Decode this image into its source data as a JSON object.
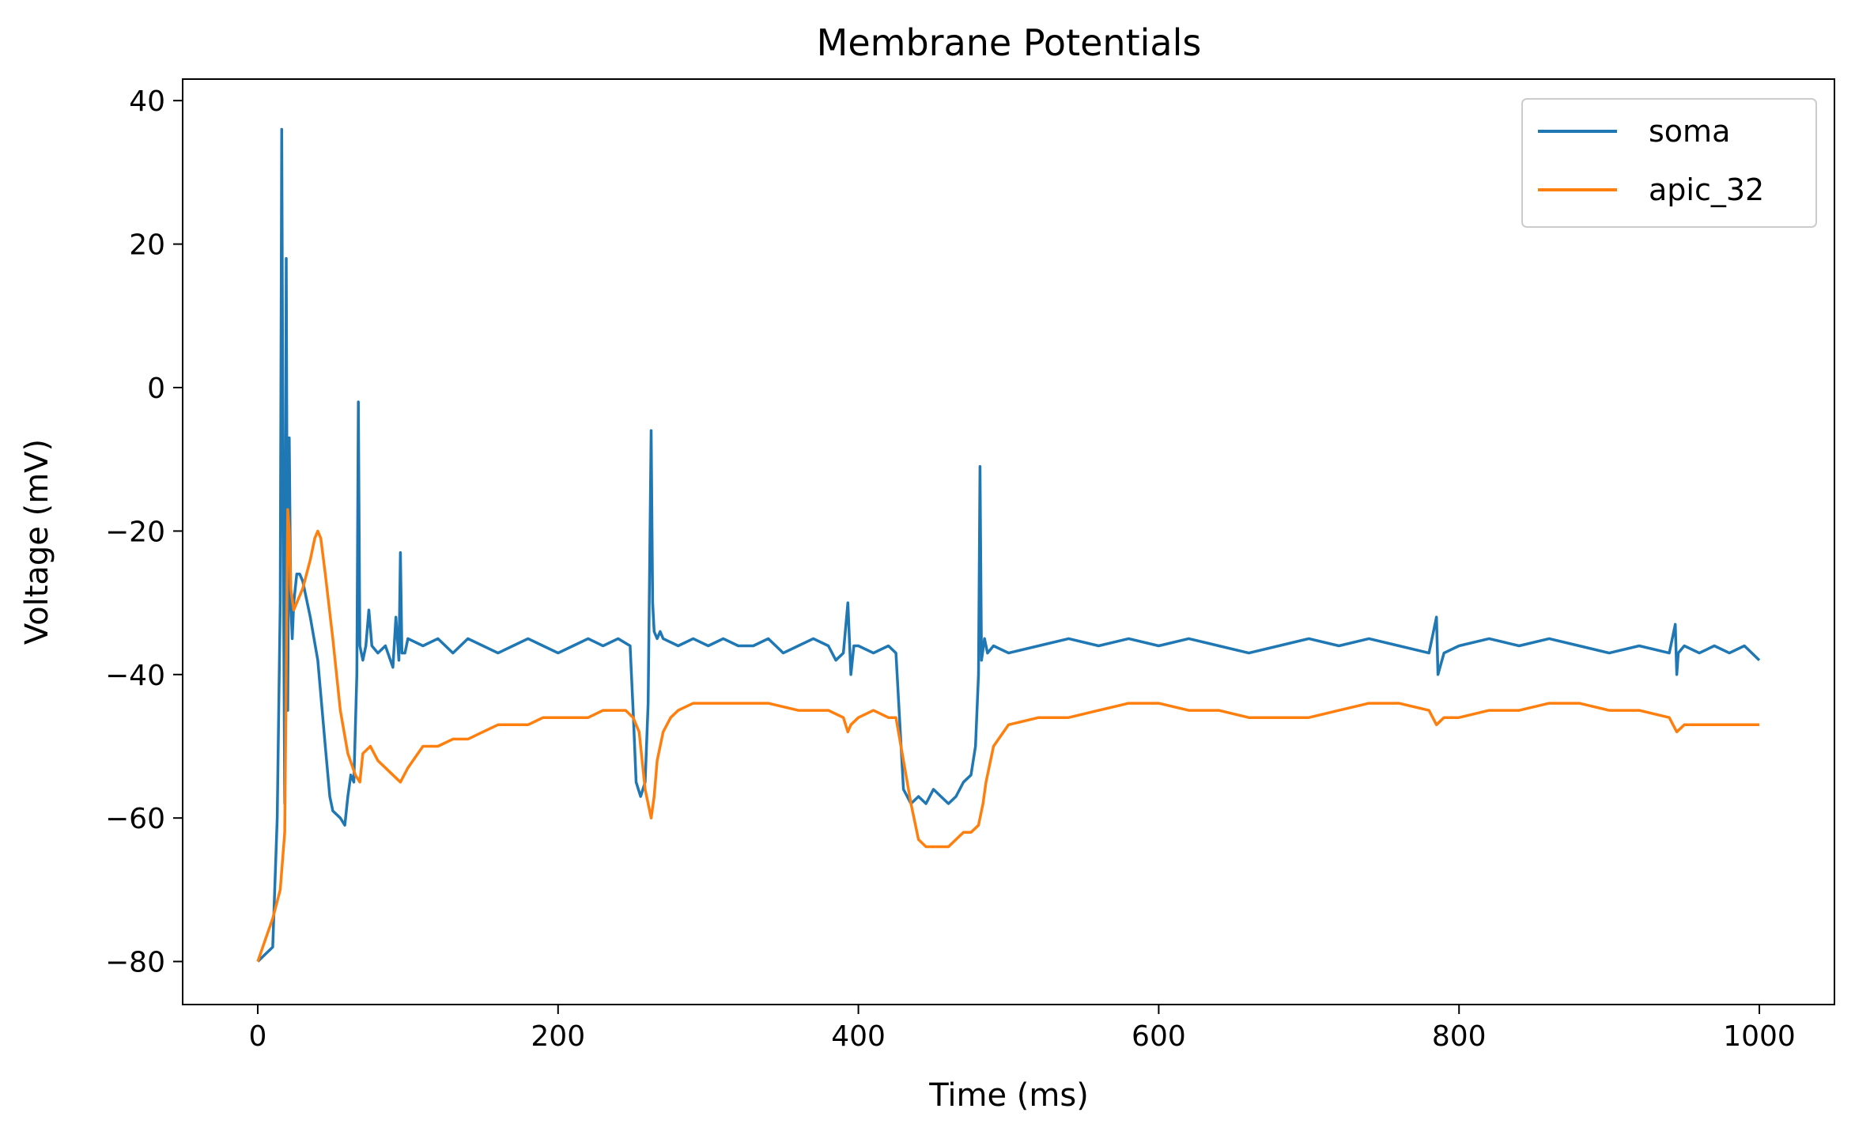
{
  "chart_data": {
    "type": "line",
    "title": "Membrane Potentials",
    "xlabel": "Time (ms)",
    "ylabel": "Voltage (mV)",
    "xlim": [
      -50,
      1050
    ],
    "ylim": [
      -86,
      43
    ],
    "xticks": [
      0,
      200,
      400,
      600,
      800,
      1000
    ],
    "yticks": [
      -80,
      -60,
      -40,
      -20,
      0,
      20,
      40
    ],
    "xtick_labels": [
      "0",
      "200",
      "400",
      "600",
      "800",
      "1000"
    ],
    "ytick_labels": [
      "−80",
      "−60",
      "−40",
      "−20",
      "0",
      "20",
      "40"
    ],
    "grid": false,
    "legend_position": "top-right",
    "series": [
      {
        "name": "soma",
        "color": "#1f77b4",
        "x": [
          0,
          5,
          10,
          13,
          15,
          16,
          17,
          18,
          19,
          20,
          21,
          22,
          23,
          24,
          25,
          26,
          28,
          30,
          35,
          40,
          45,
          48,
          50,
          55,
          58,
          60,
          62,
          64,
          66,
          67,
          68,
          70,
          72,
          74,
          76,
          80,
          85,
          90,
          92,
          94,
          95,
          96,
          98,
          100,
          110,
          120,
          130,
          140,
          150,
          160,
          170,
          180,
          190,
          200,
          210,
          220,
          230,
          240,
          248,
          250,
          252,
          255,
          258,
          260,
          262,
          263,
          264,
          266,
          268,
          270,
          280,
          290,
          300,
          310,
          320,
          330,
          340,
          350,
          360,
          370,
          380,
          385,
          390,
          393,
          395,
          397,
          400,
          410,
          420,
          425,
          430,
          435,
          440,
          445,
          450,
          455,
          460,
          465,
          470,
          475,
          478,
          480,
          481,
          482,
          484,
          486,
          490,
          500,
          520,
          540,
          560,
          580,
          600,
          620,
          640,
          660,
          680,
          700,
          720,
          740,
          760,
          780,
          785,
          786,
          790,
          800,
          820,
          840,
          860,
          880,
          900,
          920,
          940,
          944,
          945,
          946,
          950,
          960,
          970,
          980,
          990,
          995,
          1000
        ],
        "y": [
          -80,
          -79,
          -78,
          -60,
          -30,
          36,
          -20,
          -58,
          18,
          -45,
          -7,
          -30,
          -35,
          -30,
          -28,
          -26,
          -26,
          -27,
          -32,
          -38,
          -50,
          -57,
          -59,
          -60,
          -61,
          -57,
          -54,
          -55,
          -40,
          -2,
          -36,
          -38,
          -36,
          -31,
          -36,
          -37,
          -36,
          -39,
          -32,
          -38,
          -23,
          -37,
          -37,
          -35,
          -36,
          -35,
          -37,
          -35,
          -36,
          -37,
          -36,
          -35,
          -36,
          -37,
          -36,
          -35,
          -36,
          -35,
          -36,
          -45,
          -55,
          -57,
          -55,
          -44,
          -6,
          -30,
          -34,
          -35,
          -34,
          -35,
          -36,
          -35,
          -36,
          -35,
          -36,
          -36,
          -35,
          -37,
          -36,
          -35,
          -36,
          -38,
          -37,
          -30,
          -40,
          -36,
          -36,
          -37,
          -36,
          -37,
          -56,
          -58,
          -57,
          -58,
          -56,
          -57,
          -58,
          -57,
          -55,
          -54,
          -50,
          -40,
          -11,
          -38,
          -35,
          -37,
          -36,
          -37,
          -36,
          -35,
          -36,
          -35,
          -36,
          -35,
          -36,
          -37,
          -36,
          -35,
          -36,
          -35,
          -36,
          -37,
          -32,
          -40,
          -37,
          -36,
          -35,
          -36,
          -35,
          -36,
          -37,
          -36,
          -37,
          -33,
          -40,
          -37,
          -36,
          -37,
          -36,
          -37,
          -36,
          -37,
          -38
        ]
      },
      {
        "name": "apic_32",
        "color": "#ff7f0e",
        "x": [
          0,
          5,
          10,
          15,
          18,
          20,
          21,
          22,
          24,
          26,
          30,
          35,
          38,
          40,
          42,
          45,
          50,
          55,
          60,
          65,
          68,
          70,
          75,
          80,
          85,
          90,
          95,
          100,
          110,
          120,
          130,
          140,
          150,
          160,
          170,
          180,
          190,
          200,
          210,
          220,
          230,
          240,
          245,
          250,
          254,
          256,
          258,
          260,
          262,
          264,
          266,
          270,
          275,
          280,
          290,
          300,
          320,
          340,
          360,
          380,
          390,
          393,
          395,
          400,
          410,
          420,
          425,
          430,
          435,
          440,
          445,
          450,
          455,
          460,
          465,
          470,
          475,
          480,
          483,
          485,
          490,
          500,
          520,
          540,
          560,
          580,
          600,
          620,
          640,
          660,
          680,
          700,
          720,
          740,
          760,
          780,
          785,
          790,
          800,
          820,
          840,
          860,
          880,
          900,
          920,
          940,
          945,
          950,
          960,
          980,
          1000
        ],
        "y": [
          -80,
          -77,
          -74,
          -70,
          -62,
          -17,
          -20,
          -28,
          -31,
          -30,
          -28,
          -24,
          -21,
          -20,
          -21,
          -26,
          -35,
          -45,
          -51,
          -54,
          -55,
          -51,
          -50,
          -52,
          -53,
          -54,
          -55,
          -53,
          -50,
          -50,
          -49,
          -49,
          -48,
          -47,
          -47,
          -47,
          -46,
          -46,
          -46,
          -46,
          -45,
          -45,
          -45,
          -46,
          -48,
          -52,
          -56,
          -58,
          -60,
          -57,
          -52,
          -48,
          -46,
          -45,
          -44,
          -44,
          -44,
          -44,
          -45,
          -45,
          -46,
          -48,
          -47,
          -46,
          -45,
          -46,
          -46,
          -52,
          -58,
          -63,
          -64,
          -64,
          -64,
          -64,
          -63,
          -62,
          -62,
          -61,
          -58,
          -55,
          -50,
          -47,
          -46,
          -46,
          -45,
          -44,
          -44,
          -45,
          -45,
          -46,
          -46,
          -46,
          -45,
          -44,
          -44,
          -45,
          -47,
          -46,
          -46,
          -45,
          -45,
          -44,
          -44,
          -45,
          -45,
          -46,
          -48,
          -47,
          -47,
          -47,
          -47
        ]
      }
    ]
  }
}
